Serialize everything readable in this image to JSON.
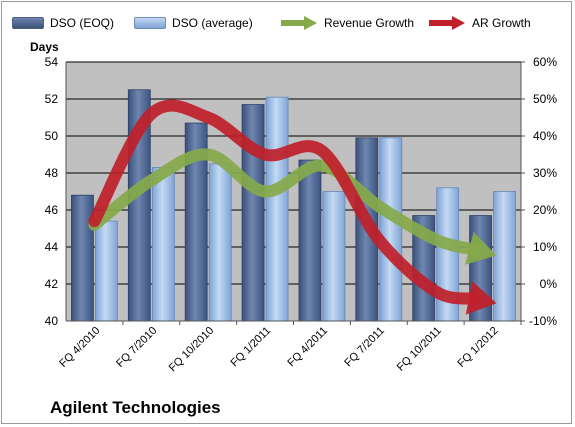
{
  "chart_data": {
    "type": "bar",
    "title": "Agilent Technologies",
    "ylabel": "Days",
    "categories": [
      "FQ 4/2010",
      "FQ 7/2010",
      "FQ 10/2010",
      "FQ 1/2011",
      "FQ 4/2011",
      "FQ 7/2011",
      "FQ 10/2011",
      "FQ 1/2012"
    ],
    "ylim": [
      40,
      54
    ],
    "yticks": [
      "40",
      "42",
      "44",
      "46",
      "48",
      "50",
      "52",
      "54"
    ],
    "y2lim": [
      -10,
      60
    ],
    "y2ticks": [
      "-10%",
      "0%",
      "10%",
      "20%",
      "30%",
      "40%",
      "50%",
      "60%"
    ],
    "series": [
      {
        "name": "DSO (EOQ)",
        "kind": "bar",
        "color": "#4a6389",
        "values": [
          46.8,
          52.5,
          50.7,
          51.7,
          48.7,
          49.9,
          45.7,
          45.7
        ]
      },
      {
        "name": "DSO (average)",
        "kind": "bar",
        "color": "#8fb1de",
        "values": [
          45.4,
          48.3,
          48.5,
          52.1,
          47.0,
          49.9,
          47.2,
          47.0
        ]
      },
      {
        "name": "Revenue Growth",
        "kind": "line-arrow",
        "axis": "secondary",
        "color": "#86a94a",
        "values": [
          16,
          28,
          35,
          25,
          32,
          21,
          12,
          8
        ]
      },
      {
        "name": "AR Growth",
        "kind": "line-arrow",
        "axis": "secondary",
        "color": "#c0202a",
        "values": [
          17,
          46,
          45,
          35,
          36,
          12,
          -2,
          -5
        ]
      }
    ],
    "grid": true,
    "legend_position": "top"
  },
  "colors": {
    "plot_bg": "#c0c0c0",
    "gridline": "#000000"
  }
}
